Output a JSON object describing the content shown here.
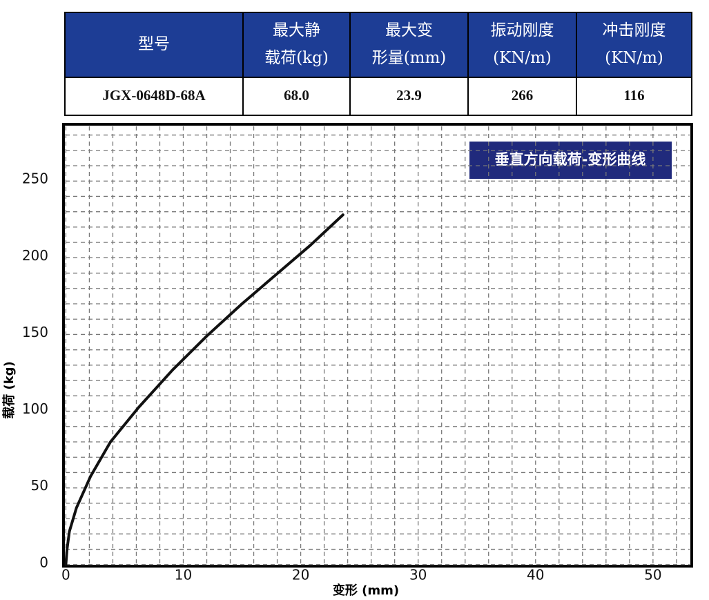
{
  "table": {
    "header": [
      [
        "型号"
      ],
      [
        "最大静",
        "载荷(kg)"
      ],
      [
        "最大变",
        "形量(mm)"
      ],
      [
        "振动刚度",
        "(KN/m)"
      ],
      [
        "冲击刚度",
        "(KN/m)"
      ]
    ],
    "rows": [
      [
        "JGX-0648D-68A",
        "68.0",
        "23.9",
        "266",
        "116"
      ]
    ]
  },
  "chart_data": {
    "type": "line",
    "annotation": "垂直方向载荷-变形曲线",
    "x_label": "变形 (mm)",
    "y_label": "载荷 (kg)",
    "x": [
      0,
      0.1,
      0.3,
      0.9,
      2.1,
      3.8,
      6.2,
      9.1,
      12,
      15,
      17.9,
      20.8,
      23.6
    ],
    "series": [
      {
        "name": "载荷",
        "color": "#111111",
        "values": [
          0,
          10,
          21.6,
          37,
          57.5,
          80,
          102.5,
          127,
          149,
          170,
          189,
          208,
          228
        ]
      }
    ],
    "xlim": [
      -0.2,
      53.3
    ],
    "ylim": [
      -1,
      287
    ],
    "xticks": [
      0,
      10,
      20,
      30,
      40,
      50
    ],
    "yticks": [
      0,
      50,
      100,
      150,
      200,
      250
    ],
    "grid": true,
    "xgrid": [
      0,
      2,
      4,
      6,
      8,
      10,
      12,
      14,
      16,
      18,
      20,
      22,
      24,
      26,
      28,
      30,
      32,
      34,
      36,
      38,
      40,
      42,
      44,
      46,
      48,
      50,
      52
    ],
    "ygrid": [
      0,
      10,
      20,
      30,
      40,
      50,
      60,
      70,
      80,
      90,
      100,
      110,
      120,
      130,
      140,
      150,
      160,
      170,
      180,
      190,
      200,
      210,
      220,
      230,
      240,
      250,
      260,
      270,
      280
    ]
  }
}
